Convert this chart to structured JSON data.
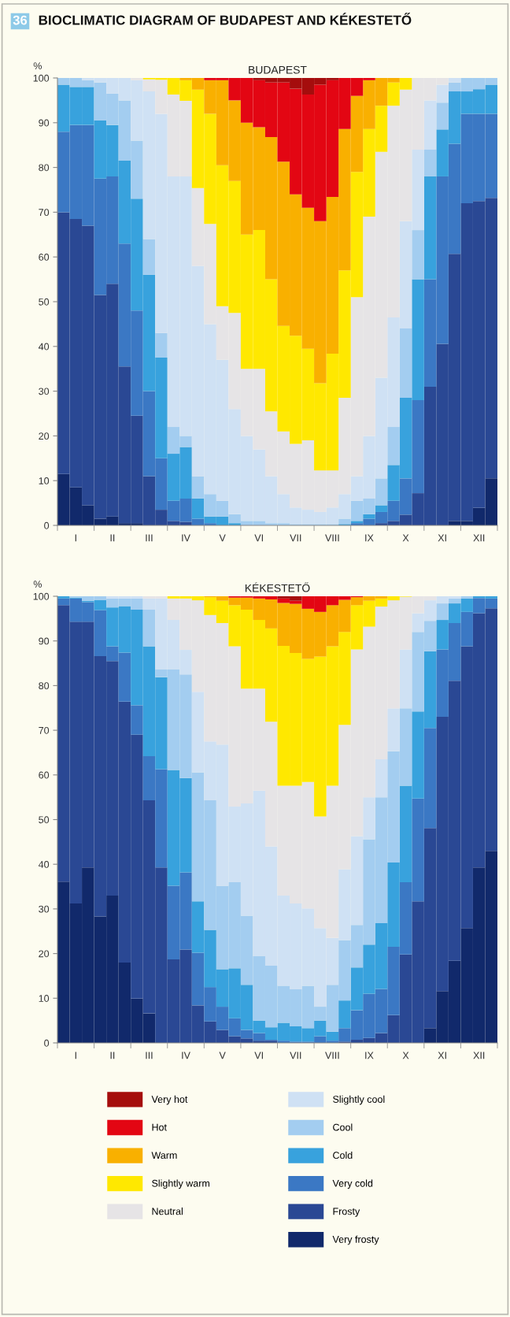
{
  "chart_data": [
    {
      "type": "bar",
      "stacked": true,
      "title": "BUDAPEST",
      "ylabel": "%",
      "annotations": [
        "36",
        "BIOCLIMATIC DIAGRAM OF BUDAPEST AND KÉKESTETŐ"
      ],
      "legend": "bottom",
      "ylim": [
        0,
        100
      ],
      "yticks": [
        0,
        10,
        20,
        30,
        40,
        50,
        60,
        70,
        80,
        90,
        100
      ],
      "categories": [
        null,
        "I",
        null,
        null,
        "II",
        null,
        null,
        "III",
        null,
        null,
        "IV",
        null,
        null,
        "V",
        null,
        null,
        "VI",
        null,
        null,
        "VII",
        null,
        null,
        "VIII",
        null,
        null,
        "IX",
        null,
        null,
        "X",
        null,
        null,
        "XI",
        null,
        null,
        "XII",
        null
      ],
      "series": [
        {
          "name": "Very frosty",
          "color": "#11296b",
          "values": [
            11.5,
            8.5,
            4.5,
            1.5,
            2,
            0.5,
            0.5,
            0,
            0,
            0,
            0,
            0,
            0,
            0,
            0,
            0,
            0,
            0,
            0,
            0,
            0,
            0,
            0,
            0,
            0,
            0,
            0,
            0,
            0,
            0,
            0,
            0,
            1,
            1,
            3.9,
            10.5
          ]
        },
        {
          "name": "Frosty",
          "color": "#2a4894",
          "values": [
            58.5,
            60,
            62.5,
            50,
            52,
            35,
            24,
            11,
            3.5,
            1,
            0.8,
            0,
            0,
            0,
            0,
            0,
            0,
            0,
            0,
            0,
            0,
            0,
            0,
            0,
            0,
            0,
            0.5,
            1,
            2.4,
            7.2,
            31,
            40.6,
            59.7,
            71,
            68.6,
            62.7
          ]
        },
        {
          "name": "Very cold",
          "color": "#3b78c4",
          "values": [
            18,
            21,
            22.5,
            26,
            24,
            27.5,
            23.5,
            19,
            11.5,
            4.5,
            5.2,
            1.5,
            0.5,
            0,
            0,
            0,
            0,
            0,
            0,
            0,
            0,
            0,
            0,
            0,
            0.5,
            1.5,
            2.5,
            4.5,
            8.1,
            20.8,
            24,
            37.4,
            24.6,
            20,
            19.5,
            18.8
          ]
        },
        {
          "name": "Cold",
          "color": "#38a2dd",
          "values": [
            10.5,
            8.5,
            8.5,
            13,
            11.5,
            18.5,
            25,
            26,
            22.5,
            10.5,
            11.5,
            4.5,
            1.5,
            2,
            0.5,
            0,
            0,
            0,
            0,
            0,
            0,
            0,
            0,
            0.3,
            0.5,
            1,
            1.5,
            8,
            18,
            27,
            23,
            10.5,
            11.7,
            5,
            5.5,
            6.5
          ]
        },
        {
          "name": "Cool",
          "color": "#a3cdf0",
          "values": [
            1.5,
            2,
            1.5,
            8.5,
            7,
            13.5,
            13,
            8,
            5.5,
            6,
            2.5,
            5,
            5,
            3.5,
            2,
            1,
            1,
            0.5,
            0.5,
            0.3,
            0.3,
            0.3,
            0.3,
            1.2,
            4.5,
            3.5,
            6,
            8.5,
            15.5,
            11,
            6,
            6,
            2,
            3,
            2.5,
            1.5
          ]
        },
        {
          "name": "Slightly cool",
          "color": "#cfe1f4",
          "values": [
            0,
            0,
            0.5,
            1,
            3.5,
            5,
            13.5,
            33,
            49,
            56,
            58,
            47,
            38,
            31.5,
            23.5,
            19,
            16,
            10.5,
            6.5,
            3.7,
            3.2,
            2.7,
            3.7,
            5.5,
            5.5,
            14,
            22.5,
            24.5,
            24,
            18,
            11,
            4,
            1,
            0,
            0,
            0
          ]
        },
        {
          "name": "Neutral",
          "color": "#e6e4e6",
          "values": [
            0,
            0,
            0,
            0,
            0,
            0,
            0.5,
            2.7,
            7.6,
            18.3,
            16.9,
            17.4,
            22.4,
            12,
            21.5,
            15,
            18,
            14.5,
            14,
            14.2,
            15.5,
            9.3,
            8.3,
            21.5,
            40,
            49,
            50.5,
            47.3,
            29.4,
            16,
            5,
            1.5,
            0,
            0,
            0,
            0
          ]
        },
        {
          "name": "Slightly warm",
          "color": "#ffe800",
          "values": [
            0,
            0,
            0,
            0,
            0,
            0,
            0,
            0.3,
            0.4,
            3.7,
            4.6,
            22,
            24.6,
            31.5,
            29.5,
            30,
            31,
            29.5,
            23.6,
            24.2,
            20.5,
            19.5,
            26.1,
            28.5,
            28,
            19.6,
            10.3,
            5.2,
            2.6,
            0,
            0,
            0,
            0,
            0,
            0,
            0
          ]
        },
        {
          "name": "Warm",
          "color": "#f9b000",
          "values": [
            0,
            0,
            0,
            0,
            0,
            0,
            0,
            0,
            0,
            0,
            0.5,
            2.6,
            7.5,
            19,
            18,
            25,
            23,
            31.8,
            36.7,
            31.6,
            31.5,
            36.2,
            35,
            31.6,
            17,
            10.9,
            6.2,
            1,
            0,
            0,
            0,
            0,
            0,
            0,
            0,
            0
          ]
        },
        {
          "name": "Hot",
          "color": "#e30613",
          "values": [
            0,
            0,
            0,
            0,
            0,
            0,
            0,
            0,
            0,
            0,
            0,
            0,
            0.5,
            0.5,
            5,
            10,
            10.5,
            12.2,
            17.7,
            23.6,
            25.3,
            30.5,
            26.1,
            11.4,
            4,
            0.5,
            0,
            0,
            0,
            0,
            0,
            0,
            0,
            0,
            0,
            0
          ]
        },
        {
          "name": "Very hot",
          "color": "#a50d0d",
          "values": [
            0,
            0,
            0,
            0,
            0,
            0,
            0,
            0,
            0,
            0,
            0,
            0,
            0,
            0,
            0,
            0,
            0.5,
            1,
            1,
            2.4,
            3.7,
            1.5,
            0.5,
            0,
            0,
            0,
            0,
            0,
            0,
            0,
            0,
            0,
            0,
            0,
            0,
            0
          ]
        }
      ]
    },
    {
      "type": "bar",
      "stacked": true,
      "title": "KÉKESTETŐ",
      "ylabel": "%",
      "ylim": [
        0,
        100
      ],
      "yticks": [
        0,
        10,
        20,
        30,
        40,
        50,
        60,
        70,
        80,
        90,
        100
      ],
      "categories": [
        null,
        "I",
        null,
        null,
        "II",
        null,
        null,
        "III",
        null,
        null,
        "IV",
        null,
        null,
        "V",
        null,
        null,
        "VI",
        null,
        null,
        "VII",
        null,
        null,
        "VIII",
        null,
        null,
        "IX",
        null,
        null,
        "X",
        null,
        null,
        "XI",
        null,
        null,
        "XII",
        null
      ],
      "series": [
        {
          "color": "#11296b",
          "values": [
            36.1,
            31.2,
            39.3,
            28.3,
            33,
            18,
            9.9,
            6.6,
            0,
            0,
            0,
            0,
            0,
            0,
            0,
            0,
            0,
            0,
            0,
            0,
            0,
            0,
            0,
            0,
            0,
            0,
            0,
            0,
            0,
            0,
            3.3,
            11.6,
            18.4,
            25.7,
            39.3,
            43
          ]
        },
        {
          "color": "#2a4894",
          "values": [
            61.9,
            63.1,
            55,
            58.3,
            52.5,
            58.4,
            59.1,
            47.7,
            39.3,
            18.7,
            20.9,
            8.4,
            4.8,
            2.9,
            1.5,
            1,
            0.5,
            0.5,
            0,
            0,
            0,
            0,
            0,
            0.3,
            0.7,
            1.1,
            2.2,
            6.2,
            19.8,
            31.7,
            44.8,
            61.4,
            62.7,
            63.1,
            56.9,
            54.3
          ]
        },
        {
          "color": "#3b78c4",
          "values": [
            1.5,
            5.2,
            4.4,
            10.3,
            3.3,
            11,
            6.6,
            9.9,
            22,
            16.5,
            17.3,
            11.8,
            7.7,
            5.2,
            4,
            1.9,
            1.7,
            0.2,
            0.5,
            0.3,
            0.3,
            1.5,
            0.5,
            3,
            6.6,
            9.9,
            9.9,
            15.3,
            16.2,
            23,
            22.4,
            15.1,
            12.9,
            7.7,
            3.4,
            2.2
          ]
        },
        {
          "color": "#38a2dd",
          "values": [
            0.5,
            0.2,
            0.3,
            2.3,
            8.7,
            10.4,
            21.4,
            24.6,
            20.6,
            25.9,
            21.1,
            11.5,
            12.8,
            8.4,
            11.2,
            10.1,
            2.8,
            2.8,
            4,
            3.4,
            3,
            3.5,
            2,
            6.2,
            9.6,
            11,
            14.7,
            18.9,
            21.6,
            19.5,
            17.2,
            6.6,
            4.4,
            3,
            0.4,
            0.5
          ]
        },
        {
          "color": "#a3cdf0",
          "values": [
            0,
            0.3,
            1,
            0.8,
            2,
            1.7,
            2.5,
            8.2,
            1.7,
            22.5,
            23.2,
            28.9,
            29,
            18.7,
            19.3,
            15.5,
            14.4,
            13.8,
            8.3,
            8.3,
            9.5,
            3.1,
            10.5,
            13.5,
            9.5,
            23.6,
            28.2,
            24.9,
            17.3,
            17.8,
            6.8,
            3.7,
            1.1,
            0.5,
            0,
            0
          ]
        },
        {
          "color": "#cfe1f4",
          "values": [
            0,
            0,
            0,
            0,
            0.5,
            0.5,
            0.5,
            2.5,
            15.9,
            11.1,
            5.5,
            18,
            13.2,
            31.6,
            16.9,
            25.1,
            37.1,
            26.7,
            20.2,
            19.2,
            17.3,
            17.6,
            10.5,
            15.9,
            19.9,
            9.4,
            8.5,
            9.6,
            13.2,
            4.2,
            4.6,
            1.6,
            0.5,
            0,
            0,
            0
          ]
        },
        {
          "color": "#e6e4e6",
          "values": [
            0,
            0,
            0,
            0,
            0,
            0,
            0,
            0.5,
            0.5,
            4.8,
            11.5,
            20.5,
            28.3,
            27.2,
            35.9,
            25.7,
            22.8,
            27.9,
            24.6,
            26.4,
            28.3,
            25,
            34.1,
            32.3,
            41.8,
            38.2,
            34.2,
            24.2,
            11.8,
            3.8,
            0.9,
            0,
            0,
            0,
            0,
            0
          ]
        },
        {
          "color": "#ffe800",
          "values": [
            0,
            0,
            0,
            0,
            0,
            0,
            0,
            0,
            0,
            0.5,
            0.5,
            0.9,
            4,
            5,
            9.2,
            17.7,
            15.4,
            20.9,
            31.3,
            29.7,
            27.6,
            35.8,
            31.2,
            20.8,
            9.9,
            5.8,
            1.8,
            0.9,
            0.1,
            0,
            0,
            0,
            0,
            0,
            0,
            0
          ]
        },
        {
          "color": "#f9b000",
          "values": [
            0,
            0,
            0,
            0,
            0,
            0,
            0,
            0,
            0,
            0,
            0,
            0,
            0.2,
            1,
            1.7,
            2.7,
            4.8,
            6.5,
            9.6,
            11,
            11.2,
            10,
            9.2,
            7.2,
            1.8,
            1,
            0.5,
            0,
            0,
            0,
            0,
            0,
            0,
            0,
            0,
            0
          ]
        },
        {
          "color": "#e30613",
          "values": [
            0,
            0,
            0,
            0,
            0,
            0,
            0,
            0,
            0,
            0,
            0,
            0,
            0,
            0,
            0.3,
            0.3,
            0.5,
            0.7,
            1,
            0.7,
            2.8,
            3.5,
            2,
            0.8,
            0.2,
            0,
            0,
            0,
            0,
            0,
            0,
            0,
            0,
            0,
            0,
            0
          ]
        },
        {
          "color": "#a50d0d",
          "values": [
            0,
            0,
            0,
            0,
            0,
            0,
            0,
            0,
            0,
            0,
            0,
            0,
            0,
            0,
            0,
            0,
            0,
            0,
            0.5,
            1,
            0,
            0,
            0,
            0,
            0,
            0,
            0,
            0,
            0,
            0,
            0,
            0,
            0,
            0,
            0,
            0
          ]
        }
      ]
    }
  ]
}
